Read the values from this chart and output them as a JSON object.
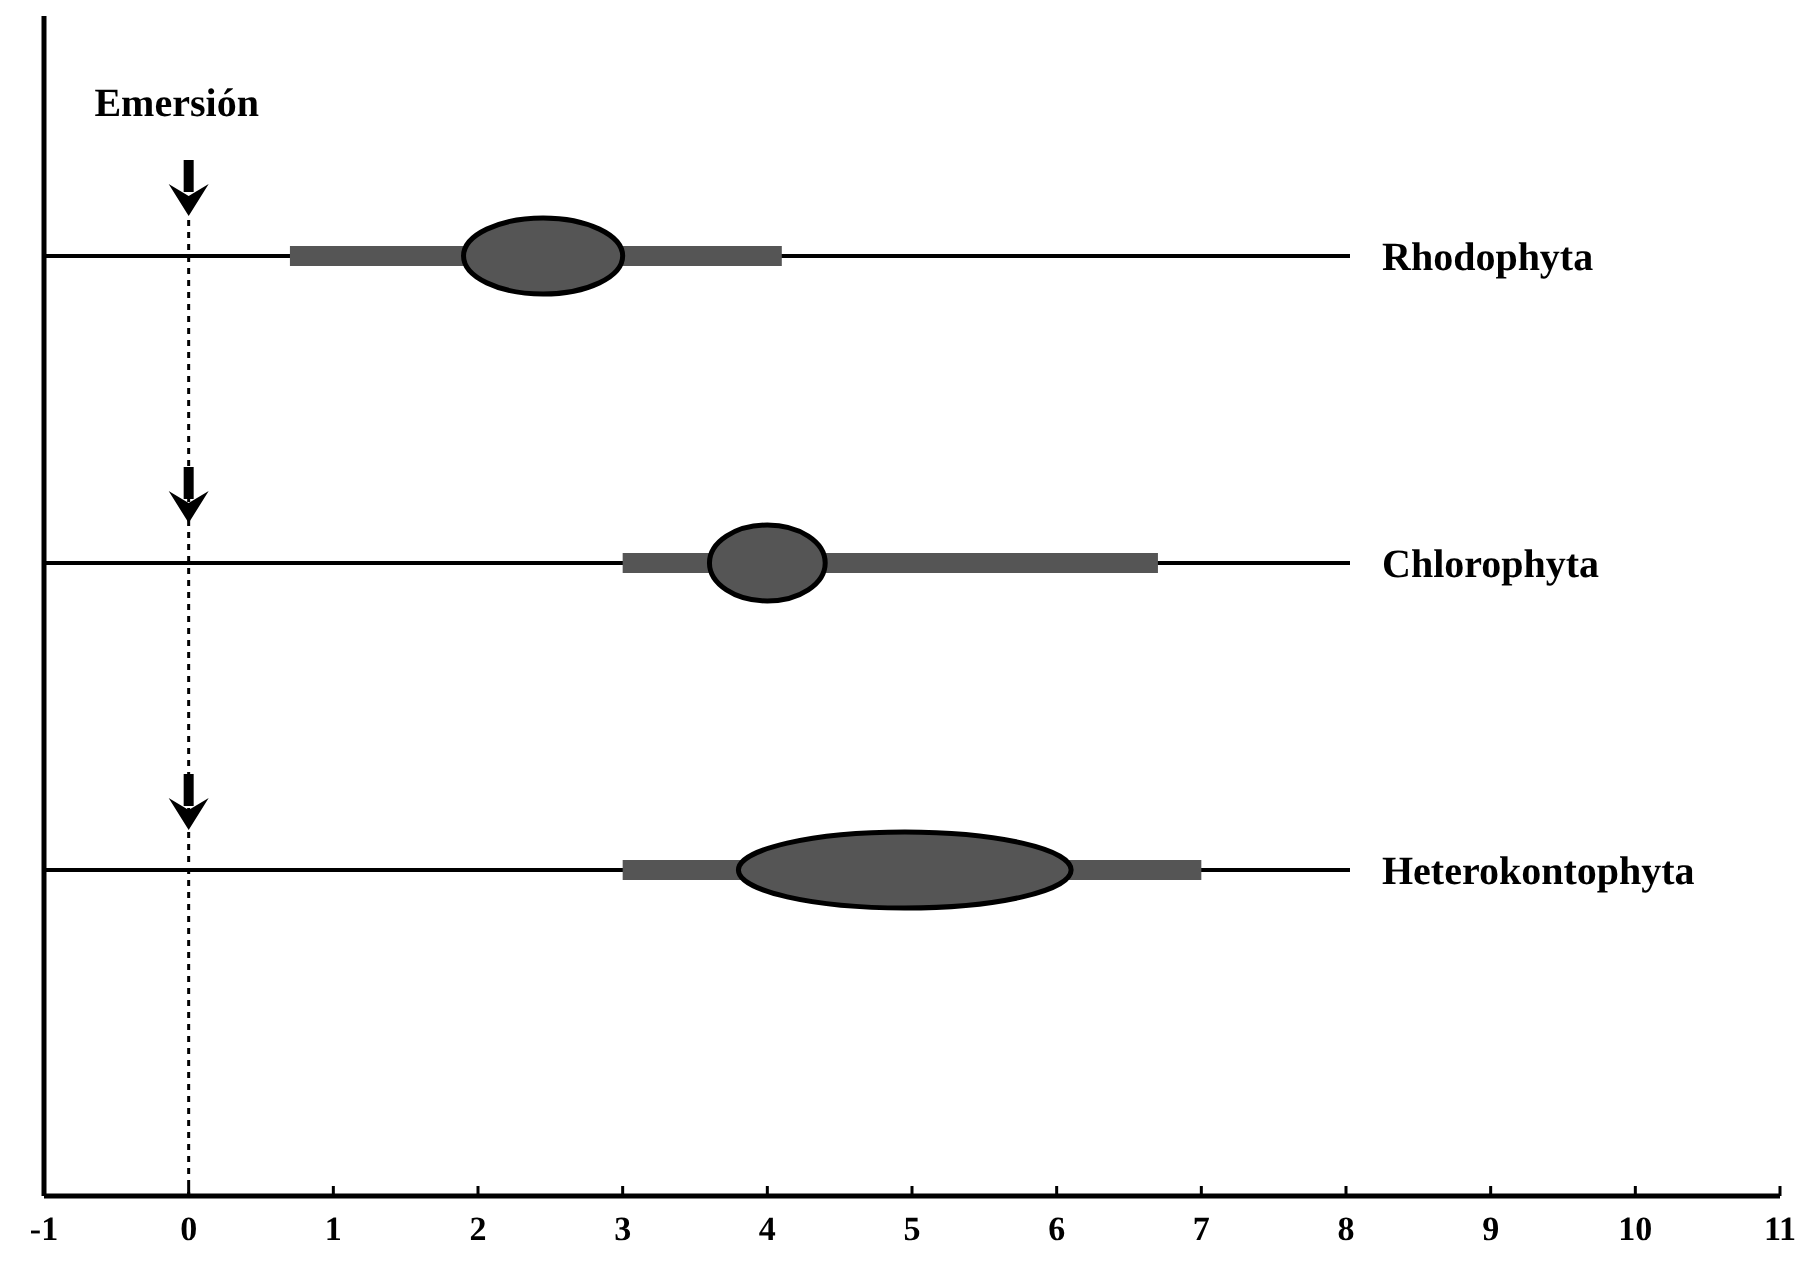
{
  "chart_data": {
    "type": "bar",
    "orientation": "horizontal",
    "categories": [
      "Rhodophyta",
      "Chlorophyta",
      "Heterokontophyta"
    ],
    "series": [
      {
        "type": "bar",
        "color": "#555555",
        "base": [
          0.7,
          3.0,
          3.0
        ],
        "values": [
          3.4,
          3.7,
          4.0
        ]
      },
      {
        "type": "bar",
        "color": "#555555",
        "base": [
          1.9,
          3.6,
          3.8
        ],
        "values": [
          1.1,
          0.8,
          2.3
        ]
      }
    ],
    "grid": "y",
    "xlim": [
      -1,
      11
    ],
    "xticks": [
      -1,
      0,
      1,
      2,
      3,
      4,
      5,
      6,
      7,
      8,
      9,
      10,
      11
    ],
    "ref_lines": [
      {
        "axis": "x",
        "value": 0,
        "label": "Emersión",
        "line_style": "dotted"
      }
    ]
  }
}
